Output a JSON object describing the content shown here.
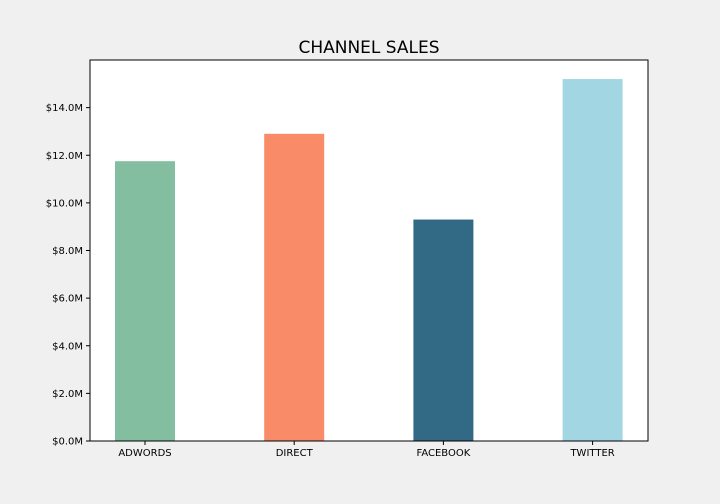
{
  "chart_data": {
    "type": "bar",
    "title": "CHANNEL SALES",
    "xlabel": "",
    "ylabel": "",
    "categories": [
      "ADWORDS",
      "DIRECT",
      "FACEBOOK",
      "TWITTER"
    ],
    "values": [
      11.75,
      12.9,
      9.3,
      15.2
    ],
    "value_unit": "millions of dollars",
    "bar_colors": [
      "#82be9f",
      "#fa8b68",
      "#326a86",
      "#a3d6e3"
    ],
    "ylim": [
      0,
      16.0
    ],
    "yticks": [
      0,
      2,
      4,
      6,
      8,
      10,
      12,
      14
    ],
    "ytick_labels": [
      "$0.0M",
      "$2.0M",
      "$4.0M",
      "$6.0M",
      "$8.0M",
      "$10.0M",
      "$12.0M",
      "$14.0M"
    ],
    "grid": false,
    "legend": "none"
  },
  "colors": {
    "figure_background": "#f0f0f0",
    "plot_background": "#ffffff",
    "axis_color": "#000000"
  }
}
